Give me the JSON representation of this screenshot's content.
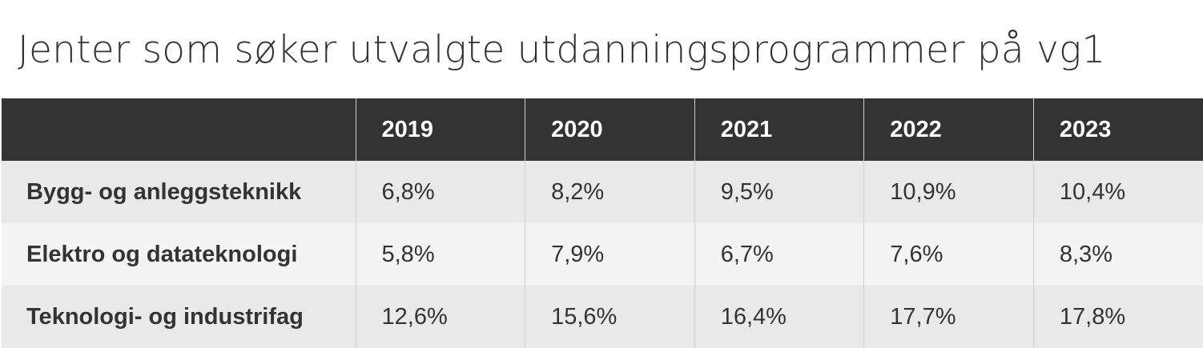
{
  "title": "Jenter som søker utvalgte utdanningsprogrammer på vg1",
  "chart_data": {
    "type": "table",
    "title": "Jenter som søker utvalgte utdanningsprogrammer på vg1",
    "columns": [
      "",
      "2019",
      "2020",
      "2021",
      "2022",
      "2023"
    ],
    "rows": [
      {
        "label": "Bygg- og anleggsteknikk",
        "values": [
          "6,8%",
          "8,2%",
          "9,5%",
          "10,9%",
          "10,4%"
        ]
      },
      {
        "label": "Elektro og datateknologi",
        "values": [
          "5,8%",
          "7,9%",
          "6,7%",
          "7,6%",
          "8,3%"
        ]
      },
      {
        "label": "Teknologi- og industrifag",
        "values": [
          "12,6%",
          "15,6%",
          "16,4%",
          "17,7%",
          "17,8%"
        ]
      }
    ]
  },
  "colors": {
    "header_bg": "#333333",
    "header_text": "#ffffff",
    "row_odd": "#e9e9e9",
    "row_even": "#f4f4f4",
    "text": "#333333"
  }
}
